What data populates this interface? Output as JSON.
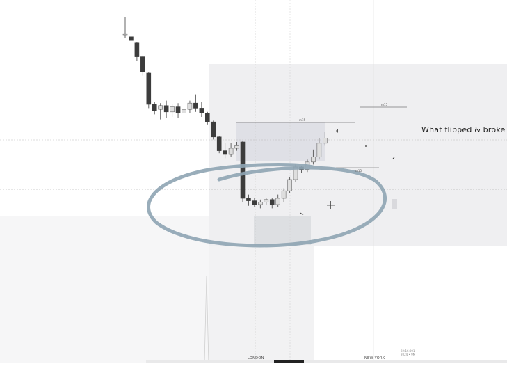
{
  "chart_data": {
    "type": "candlestick",
    "candles": [
      {
        "o": 7.5,
        "c": 7.6,
        "h": 9.0,
        "l": 7.3
      },
      {
        "o": 7.4,
        "c": 7.1,
        "h": 7.7,
        "l": 6.8
      },
      {
        "o": 6.9,
        "c": 5.8,
        "h": 7.0,
        "l": 5.5
      },
      {
        "o": 5.8,
        "c": 4.6,
        "h": 5.9,
        "l": 4.3
      },
      {
        "o": 4.5,
        "c": 2.0,
        "h": 4.6,
        "l": 1.7
      },
      {
        "o": 2.0,
        "c": 1.5,
        "h": 2.2,
        "l": 1.2
      },
      {
        "o": 1.6,
        "c": 1.9,
        "h": 2.1,
        "l": 0.8
      },
      {
        "o": 1.9,
        "c": 1.4,
        "h": 2.3,
        "l": 0.9
      },
      {
        "o": 1.4,
        "c": 1.8,
        "h": 2.0,
        "l": 1.0
      },
      {
        "o": 1.8,
        "c": 1.3,
        "h": 2.1,
        "l": 0.9
      },
      {
        "o": 1.3,
        "c": 1.6,
        "h": 1.9,
        "l": 1.1
      },
      {
        "o": 1.6,
        "c": 2.1,
        "h": 2.3,
        "l": 1.3
      },
      {
        "o": 2.1,
        "c": 1.7,
        "h": 2.8,
        "l": 1.4
      },
      {
        "o": 1.7,
        "c": 1.3,
        "h": 2.2,
        "l": 1.0
      },
      {
        "o": 1.3,
        "c": 0.6,
        "h": 1.4,
        "l": 0.4
      },
      {
        "o": 0.6,
        "c": -0.6,
        "h": 0.7,
        "l": -0.8
      },
      {
        "o": -0.6,
        "c": -1.7,
        "h": -0.5,
        "l": -1.9
      },
      {
        "o": -1.7,
        "c": -2.0,
        "h": -1.1,
        "l": -2.3
      },
      {
        "o": -2.0,
        "c": -1.5,
        "h": -1.1,
        "l": -2.2
      },
      {
        "o": -1.5,
        "c": -1.3,
        "h": -1.0,
        "l": -1.7
      },
      {
        "o": -1.0,
        "c": -5.5,
        "h": -0.9,
        "l": -5.8
      },
      {
        "o": -5.5,
        "c": -5.7,
        "h": -5.2,
        "l": -6.1
      },
      {
        "o": -5.7,
        "c": -6.0,
        "h": -5.5,
        "l": -6.2
      },
      {
        "o": -6.0,
        "c": -5.8,
        "h": -5.6,
        "l": -6.3
      },
      {
        "o": -5.8,
        "c": -5.6,
        "h": -5.5,
        "l": -6.0
      },
      {
        "o": -5.6,
        "c": -6.0,
        "h": -5.5,
        "l": -6.3
      },
      {
        "o": -6.0,
        "c": -5.5,
        "h": -5.2,
        "l": -6.2
      },
      {
        "o": -5.5,
        "c": -4.9,
        "h": -4.7,
        "l": -5.8
      },
      {
        "o": -4.9,
        "c": -4.0,
        "h": -3.8,
        "l": -5.1
      },
      {
        "o": -4.0,
        "c": -3.0,
        "h": -2.8,
        "l": -4.2
      },
      {
        "o": -3.0,
        "c": -3.2,
        "h": -2.9,
        "l": -3.5
      },
      {
        "o": -3.2,
        "c": -2.6,
        "h": -2.4,
        "l": -3.4
      },
      {
        "o": -2.6,
        "c": -2.2,
        "h": -1.6,
        "l": -2.8
      },
      {
        "o": -2.2,
        "c": -1.1,
        "h": -0.7,
        "l": -2.4
      },
      {
        "o": -1.1,
        "c": -0.7,
        "h": -0.2,
        "l": -1.3
      }
    ],
    "colors": {
      "up": "#dedede",
      "down": "#3c3c3c",
      "wick": "#555555",
      "highlight": "#8ea4b2"
    },
    "annotation": "What flipped & broke t",
    "session_labels": [
      "LONDON",
      "NEW YORK"
    ]
  },
  "labels": {
    "small_top": "m15",
    "small_box": "m15",
    "small_mid": "m15",
    "ts_line1": "22:16:001",
    "ts_line2": "2024 • 9M"
  }
}
